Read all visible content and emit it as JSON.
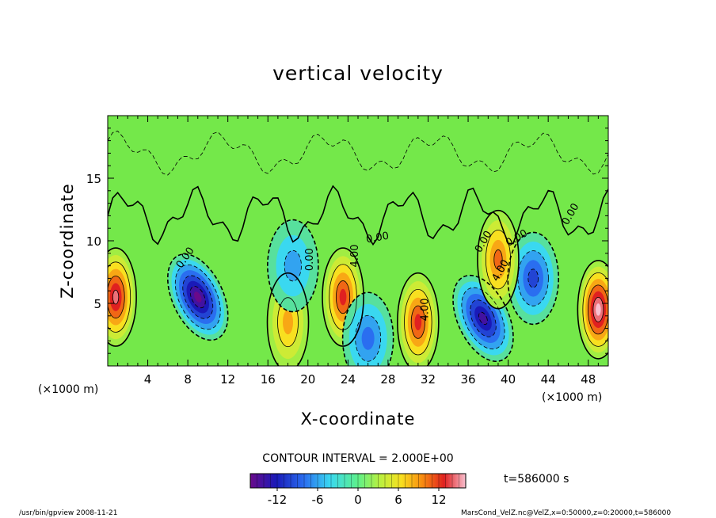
{
  "chart_data": {
    "type": "heatmap",
    "title": "vertical velocity",
    "xlabel": "X-coordinate",
    "ylabel": "Z-coordinate",
    "x_unit_left": "(×1000 m)",
    "x_unit_right": "(×1000 m)",
    "xlim": [
      0,
      50
    ],
    "ylim": [
      0,
      20
    ],
    "x_ticks": [
      4,
      8,
      12,
      16,
      20,
      24,
      28,
      32,
      36,
      40,
      44,
      48
    ],
    "y_ticks": [
      5,
      10,
      15
    ],
    "contour_interval_text": "CONTOUR INTERVAL = 2.000E+00",
    "contour_labels": [
      "0.00",
      "0.00",
      "0.00",
      "0.00",
      "0.00",
      "4.00",
      "4.00",
      "4.00",
      "0.00"
    ],
    "colorbar": {
      "min": -16,
      "max": 16,
      "ticks": [
        -12,
        -6,
        0,
        6,
        12
      ]
    },
    "time_text": "t=586000 s",
    "footer_left": "/usr/bin/gpview   2008-11-21",
    "footer_right": "MarsCond_VelZ.nc@VelZ,x=0:50000,z=0:20000,t=586000",
    "features": [
      {
        "kind": "updraft",
        "x": 0.8,
        "z": 5.5,
        "peak": 14
      },
      {
        "kind": "downdraft",
        "x": 9,
        "z": 5.5,
        "peak": -15
      },
      {
        "kind": "updraft",
        "x": 18,
        "z": 3.5,
        "peak": 8
      },
      {
        "kind": "updraft",
        "x": 23.5,
        "z": 5.5,
        "peak": 12
      },
      {
        "kind": "downdraft",
        "x": 26,
        "z": 2.2,
        "peak": -8
      },
      {
        "kind": "updraft",
        "x": 31,
        "z": 3.5,
        "peak": 12
      },
      {
        "kind": "downdraft",
        "x": 37.5,
        "z": 3.8,
        "peak": -14
      },
      {
        "kind": "downdraft",
        "x": 42.5,
        "z": 7,
        "peak": -9
      },
      {
        "kind": "updraft",
        "x": 49,
        "z": 4.5,
        "peak": 16
      },
      {
        "kind": "downdraft",
        "x": 18.5,
        "z": 8,
        "peak": -5
      },
      {
        "kind": "updraft",
        "x": 39,
        "z": 8.5,
        "peak": 9
      }
    ]
  }
}
